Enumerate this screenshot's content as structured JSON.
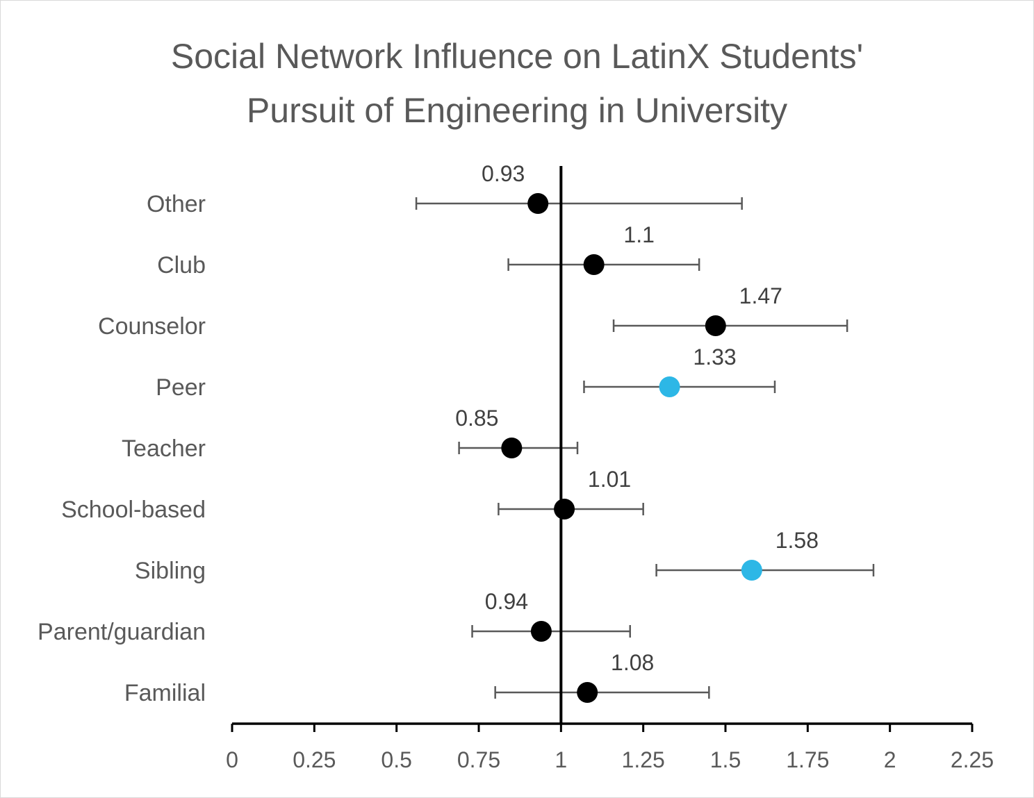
{
  "chart_data": {
    "type": "scatter",
    "title": [
      "Social Network Influence on LatinX Students'",
      "Pursuit of Engineering in University"
    ],
    "xlabel": "",
    "ylabel": "",
    "xlim": [
      0,
      2.25
    ],
    "xticks": [
      "0",
      "0.25",
      "0.5",
      "0.75",
      "1",
      "1.25",
      "1.5",
      "1.75",
      "2",
      "2.25"
    ],
    "reference_line_x": 1,
    "grid": false,
    "legend": "none",
    "categories": [
      "Other",
      "Club",
      "Counselor",
      "Peer",
      "Teacher",
      "School-based",
      "Sibling",
      "Parent/guardian",
      "Familial"
    ],
    "values": [
      0.93,
      1.1,
      1.47,
      1.33,
      0.85,
      1.01,
      1.58,
      0.94,
      1.08
    ],
    "value_labels": [
      "0.93",
      "1.1",
      "1.47",
      "1.33",
      "0.85",
      "1.01",
      "1.58",
      "0.94",
      "1.08"
    ],
    "ci_lower": [
      0.56,
      0.84,
      1.16,
      1.07,
      0.69,
      0.81,
      1.29,
      0.73,
      0.8
    ],
    "ci_upper": [
      1.55,
      1.42,
      1.87,
      1.65,
      1.05,
      1.25,
      1.95,
      1.21,
      1.45
    ],
    "highlighted": [
      false,
      false,
      false,
      true,
      false,
      false,
      true,
      false,
      false
    ],
    "colors": {
      "default_marker": "#000000",
      "highlight_marker": "#2db7e6",
      "error_bar": "#595959",
      "axis": "#000000",
      "text": "#595959"
    }
  }
}
